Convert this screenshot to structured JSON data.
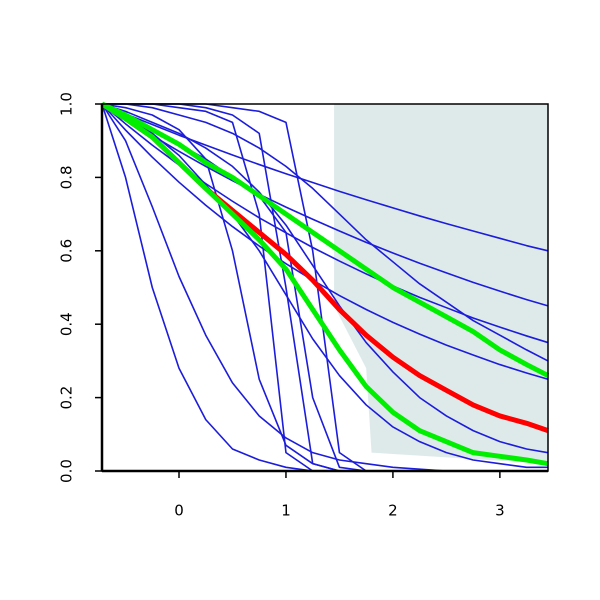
{
  "chart_data": {
    "type": "line",
    "x": [
      -0.72,
      -0.5,
      -0.25,
      0,
      0.25,
      0.5,
      0.75,
      1,
      1.25,
      1.5,
      1.75,
      2,
      2.25,
      2.5,
      2.75,
      3,
      3.25,
      3.45
    ],
    "xlim": [
      -0.72,
      3.45
    ],
    "ylim": [
      0,
      1
    ],
    "xticks": [
      0,
      1,
      2,
      3
    ],
    "yticks": [
      {
        "value": 0,
        "label": "0.0"
      },
      0.2,
      0.4,
      0.6,
      0.8,
      {
        "value": 1,
        "label": "1.0"
      }
    ],
    "shaded_region": {
      "color": "#deeaea",
      "x": [
        1.45,
        3.45,
        3.45,
        1.8,
        1.75,
        1.45
      ],
      "y": [
        1,
        1,
        0.02,
        0.05,
        0.28,
        0.45
      ]
    },
    "series": [
      {
        "color": "#1c1cdb",
        "values": [
          1,
          0.973,
          0.944,
          0.915,
          0.888,
          0.861,
          0.835,
          0.81,
          0.786,
          0.762,
          0.739,
          0.717,
          0.695,
          0.674,
          0.654,
          0.634,
          0.614,
          0.6
        ]
      },
      {
        "color": "#1c1cdb",
        "values": [
          1,
          0.958,
          0.914,
          0.871,
          0.83,
          0.791,
          0.754,
          0.719,
          0.686,
          0.654,
          0.623,
          0.594,
          0.566,
          0.54,
          0.514,
          0.49,
          0.467,
          0.45
        ]
      },
      {
        "color": "#1c1cdb",
        "values": [
          1,
          0.946,
          0.888,
          0.834,
          0.783,
          0.735,
          0.69,
          0.649,
          0.609,
          0.572,
          0.537,
          0.504,
          0.473,
          0.445,
          0.417,
          0.392,
          0.368,
          0.35
        ]
      },
      {
        "color": "#1c1cdb",
        "values": [
          1,
          0.929,
          0.855,
          0.787,
          0.724,
          0.666,
          0.613,
          0.565,
          0.52,
          0.478,
          0.44,
          0.405,
          0.373,
          0.343,
          0.316,
          0.29,
          0.267,
          0.25
        ]
      },
      {
        "color": "#1c1cdb",
        "values": [
          1,
          1,
          1,
          0.99,
          0.98,
          0.95,
          0.7,
          0.05,
          0,
          0,
          0,
          0,
          0,
          0,
          0,
          0,
          0,
          0
        ]
      },
      {
        "color": "#1c1cdb",
        "values": [
          1,
          1,
          1,
          1,
          0.99,
          0.97,
          0.92,
          0.5,
          0.02,
          0,
          0,
          0,
          0,
          0,
          0,
          0,
          0,
          0
        ]
      },
      {
        "color": "#1c1cdb",
        "values": [
          1,
          1,
          1,
          1,
          1,
          0.99,
          0.98,
          0.95,
          0.6,
          0.05,
          0,
          0,
          0,
          0,
          0,
          0,
          0,
          0
        ]
      },
      {
        "color": "#1c1cdb",
        "values": [
          1,
          0.97,
          0.93,
          0.89,
          0.85,
          0.8,
          0.75,
          0.65,
          0.2,
          0.01,
          0,
          0,
          0,
          0,
          0,
          0,
          0,
          0
        ]
      },
      {
        "color": "#1c1cdb",
        "values": [
          1,
          0.8,
          0.5,
          0.28,
          0.14,
          0.06,
          0.03,
          0.01,
          0,
          0,
          0,
          0,
          0,
          0,
          0,
          0,
          0,
          0
        ]
      },
      {
        "color": "#1c1cdb",
        "values": [
          1,
          0.9,
          0.72,
          0.53,
          0.37,
          0.24,
          0.15,
          0.09,
          0.05,
          0.03,
          0.02,
          0.01,
          0.005,
          0,
          0,
          0,
          0,
          0
        ]
      },
      {
        "color": "#1c1cdb",
        "values": [
          1,
          0.99,
          0.97,
          0.93,
          0.85,
          0.6,
          0.25,
          0.07,
          0.02,
          0,
          0,
          0,
          0,
          0,
          0,
          0,
          0,
          0
        ]
      },
      {
        "color": "#1c1cdb",
        "values": [
          1,
          0.97,
          0.92,
          0.86,
          0.78,
          0.7,
          0.6,
          0.48,
          0.36,
          0.26,
          0.18,
          0.12,
          0.08,
          0.05,
          0.03,
          0.02,
          0.01,
          0.01
        ]
      },
      {
        "color": "#1c1cdb",
        "values": [
          1,
          0.98,
          0.95,
          0.92,
          0.88,
          0.83,
          0.76,
          0.67,
          0.56,
          0.45,
          0.35,
          0.27,
          0.2,
          0.15,
          0.11,
          0.08,
          0.06,
          0.05
        ]
      },
      {
        "color": "#1c1cdb",
        "values": [
          1,
          1,
          0.99,
          0.97,
          0.95,
          0.92,
          0.88,
          0.83,
          0.77,
          0.7,
          0.63,
          0.57,
          0.51,
          0.46,
          0.41,
          0.37,
          0.33,
          0.3
        ]
      },
      {
        "color": "#ff0000",
        "values": [
          1,
          0.96,
          0.91,
          0.84,
          0.77,
          0.71,
          0.65,
          0.59,
          0.52,
          0.44,
          0.37,
          0.31,
          0.26,
          0.22,
          0.18,
          0.15,
          0.13,
          0.11
        ]
      },
      {
        "color": "#00ee00",
        "values": [
          1,
          0.97,
          0.93,
          0.89,
          0.84,
          0.8,
          0.75,
          0.7,
          0.65,
          0.6,
          0.55,
          0.5,
          0.46,
          0.42,
          0.38,
          0.33,
          0.29,
          0.26
        ]
      },
      {
        "color": "#00ee00",
        "values": [
          1,
          0.96,
          0.91,
          0.84,
          0.77,
          0.7,
          0.63,
          0.55,
          0.44,
          0.33,
          0.23,
          0.16,
          0.11,
          0.08,
          0.05,
          0.04,
          0.03,
          0.02
        ]
      }
    ]
  }
}
